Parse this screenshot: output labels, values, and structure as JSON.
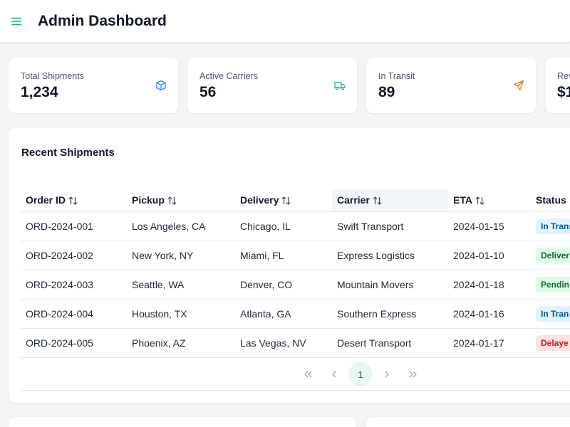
{
  "header": {
    "title": "Admin Dashboard",
    "menu_icon": "hamburger-menu-icon"
  },
  "stats": [
    {
      "label": "Total Shipments",
      "value": "1,234",
      "icon": "box-icon",
      "color": "#3b82f6"
    },
    {
      "label": "Active Carriers",
      "value": "56",
      "icon": "truck-icon",
      "color": "#10b981"
    },
    {
      "label": "In Transit",
      "value": "89",
      "icon": "send-icon",
      "color": "#f97316"
    },
    {
      "label": "Rev",
      "value": "$1",
      "icon": "",
      "color": ""
    }
  ],
  "table": {
    "title": "Recent Shipments",
    "columns": [
      "Order ID",
      "Pickup",
      "Delivery",
      "Carrier",
      "ETA",
      "Status"
    ],
    "active_column": "Carrier",
    "rows": [
      {
        "order_id": "ORD-2024-001",
        "pickup": "Los Angeles, CA",
        "delivery": "Chicago, IL",
        "carrier": "Swift Transport",
        "eta": "2024-01-15",
        "status": "In Trans",
        "status_type": "in-transit"
      },
      {
        "order_id": "ORD-2024-002",
        "pickup": "New York, NY",
        "delivery": "Miami, FL",
        "carrier": "Express Logistics",
        "eta": "2024-01-10",
        "status": "Deliver",
        "status_type": "delivered"
      },
      {
        "order_id": "ORD-2024-003",
        "pickup": "Seattle, WA",
        "delivery": "Denver, CO",
        "carrier": "Mountain Movers",
        "eta": "2024-01-18",
        "status": "Pendin",
        "status_type": "pending"
      },
      {
        "order_id": "ORD-2024-004",
        "pickup": "Houston, TX",
        "delivery": "Atlanta, GA",
        "carrier": "Southern Express",
        "eta": "2024-01-16",
        "status": "In Tran",
        "status_type": "in-transit"
      },
      {
        "order_id": "ORD-2024-005",
        "pickup": "Phoenix, AZ",
        "delivery": "Las Vegas, NV",
        "carrier": "Desert Transport",
        "eta": "2024-01-17",
        "status": "Delaye",
        "status_type": "delayed"
      }
    ]
  },
  "pagination": {
    "current_page": "1",
    "first_icon": "chevrons-left-icon",
    "prev_icon": "chevron-left-icon",
    "next_icon": "chevron-right-icon",
    "last_icon": "chevrons-right-icon"
  },
  "colors": {
    "accent": "#10b981",
    "in_transit_bg": "#e0f2fe",
    "in_transit_fg": "#075985",
    "delivered_bg": "#dcfce7",
    "delivered_fg": "#166534",
    "pending_bg": "#dcfce7",
    "pending_fg": "#166534",
    "delayed_bg": "#fee2e2",
    "delayed_fg": "#b91c1c"
  }
}
